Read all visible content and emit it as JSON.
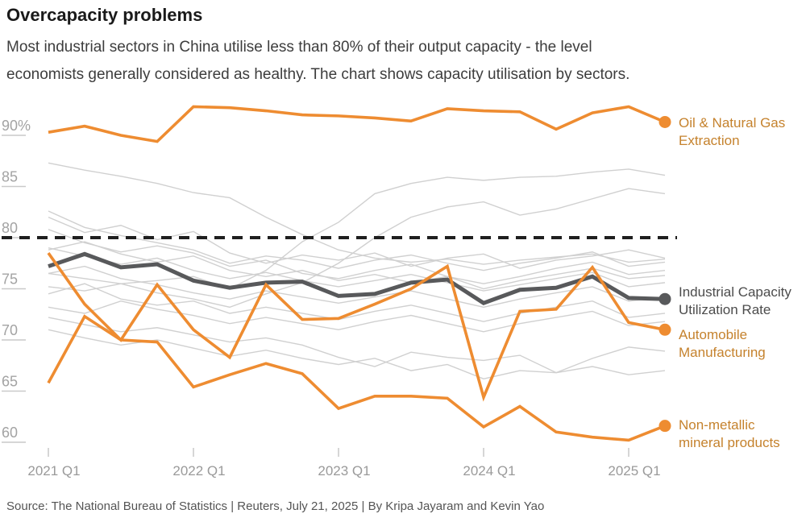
{
  "header": {
    "title": "Overcapacity problems",
    "subtitle_lines": [
      "Most industrial sectors in China utilise less than 80% of their output capacity - the level",
      "economists generally considered as healthy. The chart shows capacity utilisation by sectors."
    ]
  },
  "source": "Source: The National Bureau of Statistics | Reuters, July 21, 2025 | By Kripa Jayaram and Kevin Yao",
  "colors": {
    "background": "#ffffff",
    "orange": "#ee8c31",
    "dark": "#58595b",
    "gray": "#d0d0d0",
    "dashed": "#1f1f1f",
    "axis_text": "#a3a3a3",
    "tick_line": "#c9c9c9",
    "x_axis_text": "#9a9a9a",
    "orange_label": "#c5822d",
    "dark_label": "#4c4c4c"
  },
  "chart_data": {
    "type": "line",
    "grid": "off",
    "legend_position": "right-margin-direct-labels",
    "x_categories": [
      "2021 Q1",
      "2021 Q2",
      "2021 Q3",
      "2021 Q4",
      "2022 Q1",
      "2022 Q2",
      "2022 Q3",
      "2022 Q4",
      "2023 Q1",
      "2023 Q2",
      "2023 Q3",
      "2023 Q4",
      "2024 Q1",
      "2024 Q2",
      "2024 Q3",
      "2024 Q4",
      "2025 Q1",
      "2025 Q2"
    ],
    "x_axis_tick_labels": [
      "2021 Q1",
      "2022 Q1",
      "2023 Q1",
      "2024 Q1",
      "2025 Q1"
    ],
    "x_axis_tick_quarter_index": [
      0,
      4,
      8,
      12,
      16
    ],
    "y_ticks": [
      {
        "label": "90%",
        "value": 90
      },
      {
        "label": "85",
        "value": 85
      },
      {
        "label": "80",
        "value": 80
      },
      {
        "label": "75",
        "value": 75
      },
      {
        "label": "70",
        "value": 70
      },
      {
        "label": "65",
        "value": 65
      },
      {
        "label": "60",
        "value": 60
      }
    ],
    "ylim": [
      58.5,
      94.5
    ],
    "reference_line": {
      "value": 80,
      "style": "dashed",
      "meaning": "healthy capacity utilisation threshold"
    },
    "series": [
      {
        "name": "Unlabeled sector 1",
        "color": "gray",
        "values": [
          87.3,
          86.6,
          86.0,
          85.3,
          84.4,
          83.9,
          82.0,
          80.3,
          78.8,
          78.0,
          77.6,
          77.9,
          77.4,
          77.8,
          78.1,
          78.4,
          77.6,
          77.9
        ]
      },
      {
        "name": "Unlabeled sector 2",
        "color": "gray",
        "values": [
          76.5,
          76.0,
          75.5,
          75.8,
          76.2,
          75.0,
          76.8,
          79.6,
          81.5,
          84.3,
          85.3,
          85.9,
          85.6,
          85.9,
          86.0,
          86.4,
          86.7,
          86.1
        ]
      },
      {
        "name": "Unlabeled sector 3",
        "color": "gray",
        "values": [
          75.2,
          74.8,
          75.5,
          74.6,
          74.0,
          73.2,
          74.5,
          75.6,
          77.5,
          80.0,
          82.0,
          83.0,
          83.5,
          82.2,
          82.8,
          83.8,
          84.8,
          84.3
        ]
      },
      {
        "name": "Unlabeled sector 4",
        "color": "gray",
        "values": [
          82.6,
          81.0,
          80.2,
          79.5,
          78.8,
          77.5,
          78.2,
          77.8,
          77.0,
          77.8,
          78.3,
          77.5,
          76.8,
          77.5,
          78.0,
          78.6,
          77.2,
          77.6
        ]
      },
      {
        "name": "Unlabeled sector 5",
        "color": "gray",
        "values": [
          82.0,
          80.5,
          81.2,
          79.8,
          80.6,
          78.5,
          77.5,
          78.3,
          77.8,
          78.5,
          77.2,
          78.0,
          78.4,
          77.0,
          77.8,
          78.2,
          78.8,
          78.0
        ]
      },
      {
        "name": "Unlabeled sector 6",
        "color": "gray",
        "values": [
          80.8,
          79.5,
          78.6,
          79.2,
          78.5,
          77.2,
          77.8,
          76.5,
          76.0,
          76.8,
          77.4,
          76.2,
          75.5,
          76.2,
          77.0,
          77.6,
          76.4,
          76.8
        ]
      },
      {
        "name": "Unlabeled sector 7",
        "color": "gray",
        "values": [
          79.0,
          78.2,
          77.4,
          78.0,
          76.8,
          76.0,
          76.6,
          75.8,
          75.2,
          75.8,
          76.4,
          75.6,
          74.8,
          75.4,
          76.0,
          76.6,
          75.2,
          75.6
        ]
      },
      {
        "name": "Unlabeled sector 8",
        "color": "gray",
        "values": [
          78.8,
          79.6,
          78.4,
          77.6,
          78.2,
          76.8,
          76.2,
          76.8,
          75.8,
          76.4,
          75.6,
          76.2,
          75.0,
          75.8,
          76.4,
          77.0,
          76.0,
          76.3
        ]
      },
      {
        "name": "Unlabeled sector 9",
        "color": "gray",
        "values": [
          76.5,
          77.2,
          76.0,
          75.4,
          74.6,
          74.0,
          74.8,
          74.2,
          73.6,
          74.2,
          74.8,
          74.0,
          73.2,
          74.0,
          74.6,
          75.2,
          73.8,
          74.2
        ]
      },
      {
        "name": "Unlabeled sector 10",
        "color": "gray",
        "values": [
          74.5,
          75.5,
          74.0,
          73.4,
          73.8,
          72.6,
          73.2,
          72.6,
          72.0,
          72.8,
          73.4,
          72.6,
          71.8,
          72.6,
          73.2,
          73.8,
          72.2,
          72.6
        ]
      },
      {
        "name": "Unlabeled sector 11",
        "color": "gray",
        "values": [
          73.2,
          72.6,
          73.8,
          73.0,
          72.4,
          71.6,
          72.2,
          71.6,
          71.0,
          71.8,
          72.4,
          71.6,
          70.8,
          71.6,
          72.2,
          72.8,
          71.4,
          71.8
        ]
      },
      {
        "name": "Unlabeled sector 12",
        "color": "gray",
        "values": [
          72.2,
          71.5,
          70.8,
          71.2,
          70.5,
          69.8,
          70.2,
          69.5,
          68.3,
          67.4,
          68.8,
          68.3,
          68.0,
          68.5,
          66.8,
          68.2,
          69.3,
          68.9
        ]
      },
      {
        "name": "Unlabeled sector 13",
        "color": "gray",
        "values": [
          71.0,
          70.2,
          69.5,
          70.0,
          69.2,
          68.4,
          69.0,
          68.2,
          67.6,
          68.2,
          67.0,
          67.6,
          66.2,
          67.0,
          66.8,
          67.4,
          66.6,
          67.0
        ]
      },
      {
        "name": "Oil & Natural Gas Extraction",
        "color": "orange",
        "width": 3.6,
        "end_dot": true,
        "label_lines": [
          "Oil & Natural Gas",
          "Extraction"
        ],
        "values": [
          90.3,
          90.9,
          90.0,
          89.4,
          92.8,
          92.7,
          92.4,
          92.0,
          91.9,
          91.7,
          91.4,
          92.6,
          92.4,
          92.3,
          90.6,
          92.2,
          92.8,
          91.3
        ]
      },
      {
        "name": "Industrial Capacity Utilization Rate",
        "color": "dark",
        "width": 5,
        "end_dot": true,
        "label_lines": [
          "Industrial Capacity",
          "Utilization Rate"
        ],
        "values": [
          77.2,
          78.4,
          77.1,
          77.4,
          75.8,
          75.1,
          75.6,
          75.7,
          74.3,
          74.5,
          75.6,
          75.9,
          73.6,
          74.9,
          75.1,
          76.2,
          74.1,
          74.0
        ]
      },
      {
        "name": "Automobile Manufacturing",
        "color": "orange",
        "width": 3.6,
        "end_dot": true,
        "label_lines": [
          "Automobile",
          "Manufacturing"
        ],
        "values": [
          78.5,
          73.5,
          70.0,
          75.4,
          71.0,
          68.3,
          75.4,
          72.0,
          72.1,
          73.5,
          75.0,
          77.2,
          64.4,
          72.8,
          73.0,
          77.1,
          71.7,
          71.0
        ]
      },
      {
        "name": "Non-metallic mineral products",
        "color": "orange",
        "width": 3.6,
        "end_dot": true,
        "label_lines": [
          "Non-metallic",
          "mineral products"
        ],
        "values": [
          65.8,
          72.3,
          70.0,
          69.8,
          65.4,
          66.6,
          67.7,
          66.7,
          63.3,
          64.5,
          64.5,
          64.3,
          61.5,
          63.5,
          61.0,
          60.5,
          60.2,
          61.6
        ]
      }
    ]
  },
  "side_labels": {
    "oil": {
      "line1": "Oil & Natural Gas",
      "line2": "Extraction"
    },
    "icu": {
      "line1": "Industrial Capacity",
      "line2": "Utilization Rate"
    },
    "auto": {
      "line1": "Automobile",
      "line2": "Manufacturing"
    },
    "nm": {
      "line1": "Non-metallic",
      "line2": "mineral products"
    }
  }
}
